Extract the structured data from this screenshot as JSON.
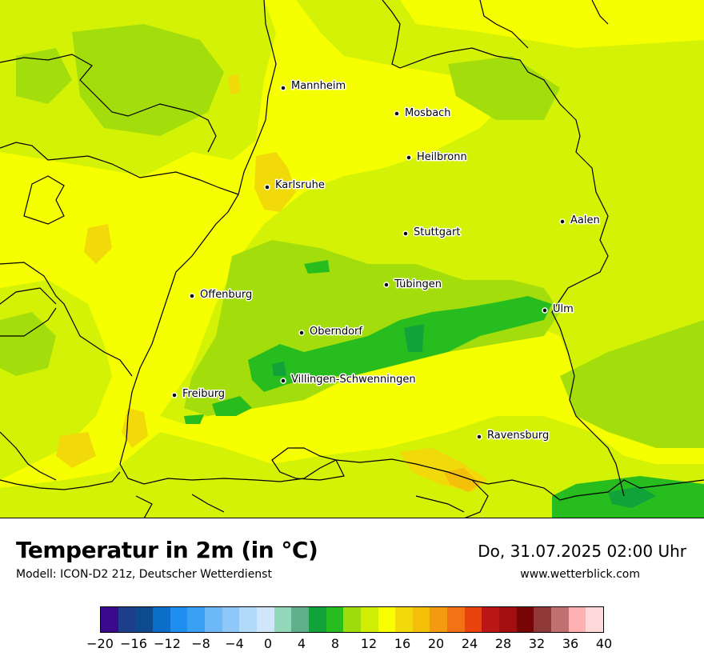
{
  "header": {
    "title": "Temperatur in 2m (in °C)",
    "model": "Modell: ICON-D2 21z, Deutscher Wetterdienst",
    "datetime": "Do, 31.07.2025 02:00 Uhr",
    "website": "www.wetterblick.com"
  },
  "cities": [
    {
      "name": "Mannheim"
    },
    {
      "name": "Mosbach"
    },
    {
      "name": "Heilbronn"
    },
    {
      "name": "Karlsruhe"
    },
    {
      "name": "Aalen"
    },
    {
      "name": "Stuttgart"
    },
    {
      "name": "Tübingen"
    },
    {
      "name": "Offenburg"
    },
    {
      "name": "Ulm"
    },
    {
      "name": "Oberndorf"
    },
    {
      "name": "Villingen-Schwenningen"
    },
    {
      "name": "Freiburg"
    },
    {
      "name": "Ravensburg"
    }
  ],
  "legend": {
    "unit": "°C",
    "tick_labels": [
      "−20",
      "−16",
      "−12",
      "−8",
      "−4",
      "0",
      "4",
      "8",
      "12",
      "16",
      "20",
      "24",
      "28",
      "32",
      "36",
      "40"
    ],
    "colors": [
      "#3b0a8c",
      "#1d3e8a",
      "#0e4a8e",
      "#0a6ec9",
      "#1f8ef1",
      "#3aa0f5",
      "#6db8f7",
      "#8ec8f9",
      "#b2daf9",
      "#cfe6fb",
      "#93d8b8",
      "#5faf8a",
      "#11a33a",
      "#27bd1f",
      "#9fdc0c",
      "#d2ed05",
      "#f7ff00",
      "#f1d90a",
      "#f3bf08",
      "#f39a10",
      "#f37216",
      "#e8420d",
      "#bb1616",
      "#a30f0f",
      "#770505",
      "#8e3838",
      "#c07070",
      "#ffb1b1",
      "#ffd9d9"
    ]
  }
}
